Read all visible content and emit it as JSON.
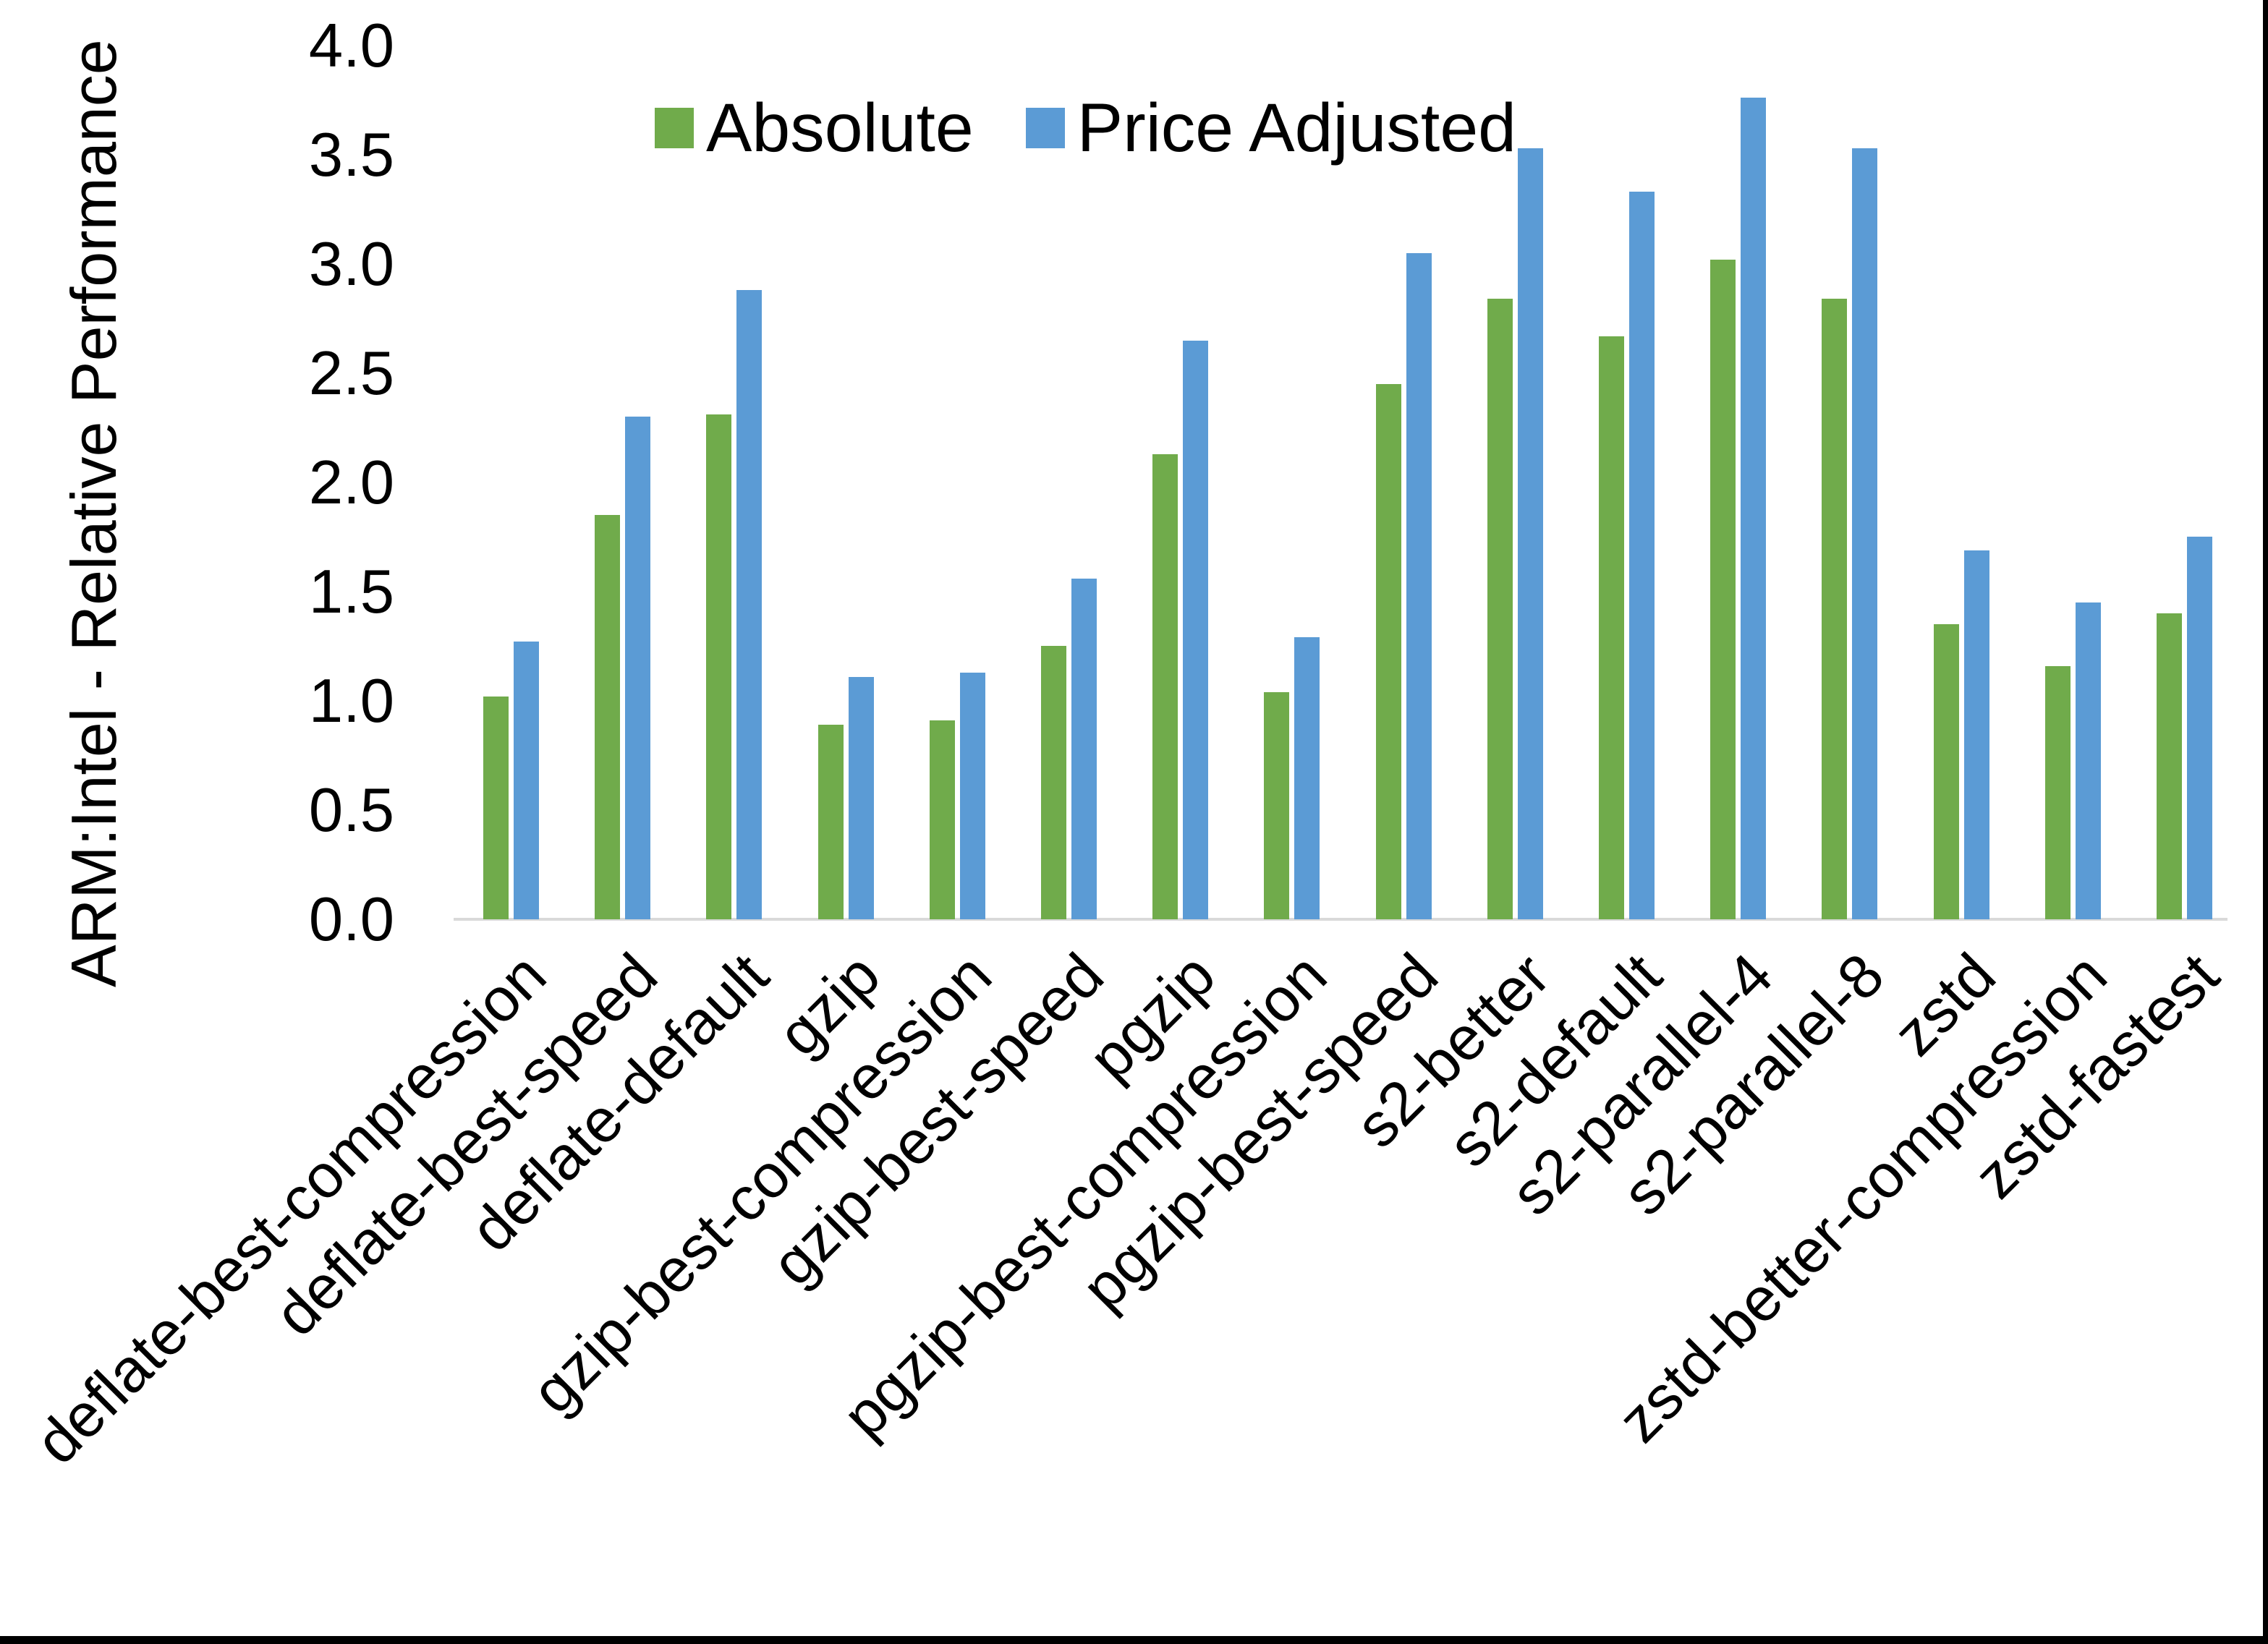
{
  "figure": {
    "background": "#FFFFFF",
    "frame_color": "#000000",
    "axis_line_color": "#D9D9D9",
    "text_color": "#000000"
  },
  "chart_data": {
    "type": "bar",
    "title": "",
    "xlabel": "",
    "ylabel": "ARM:Intel - Relative Performance",
    "ylim": [
      0.0,
      4.0
    ],
    "ytick_step": 0.5,
    "ytick_labels": [
      "0.0",
      "0.5",
      "1.0",
      "1.5",
      "2.0",
      "2.5",
      "3.0",
      "3.5",
      "4.0"
    ],
    "grid": false,
    "legend_position": "top-center-inside",
    "categories": [
      "deflate-best-compression",
      "deflate-best-speed",
      "deflate-default",
      "gzip",
      "gzip-best-compression",
      "gzip-best-speed",
      "pgzip",
      "pgzip-best-compression",
      "pgzip-best-speed",
      "s2-better",
      "s2-default",
      "s2-parallel-4",
      "s2-parallel-8",
      "zstd",
      "zstd-better-compression",
      "zstd-fastest"
    ],
    "series": [
      {
        "name": "Absolute",
        "color": "#70AB4B",
        "values": [
          1.02,
          1.85,
          2.31,
          0.89,
          0.91,
          1.25,
          2.13,
          1.04,
          2.45,
          2.84,
          2.67,
          3.02,
          2.84,
          1.35,
          1.16,
          1.4
        ]
      },
      {
        "name": "Price Adjusted",
        "color": "#5B9BD5",
        "values": [
          1.27,
          2.3,
          2.88,
          1.11,
          1.13,
          1.56,
          2.65,
          1.29,
          3.05,
          3.53,
          3.33,
          3.76,
          3.53,
          1.69,
          1.45,
          1.75
        ]
      }
    ]
  }
}
